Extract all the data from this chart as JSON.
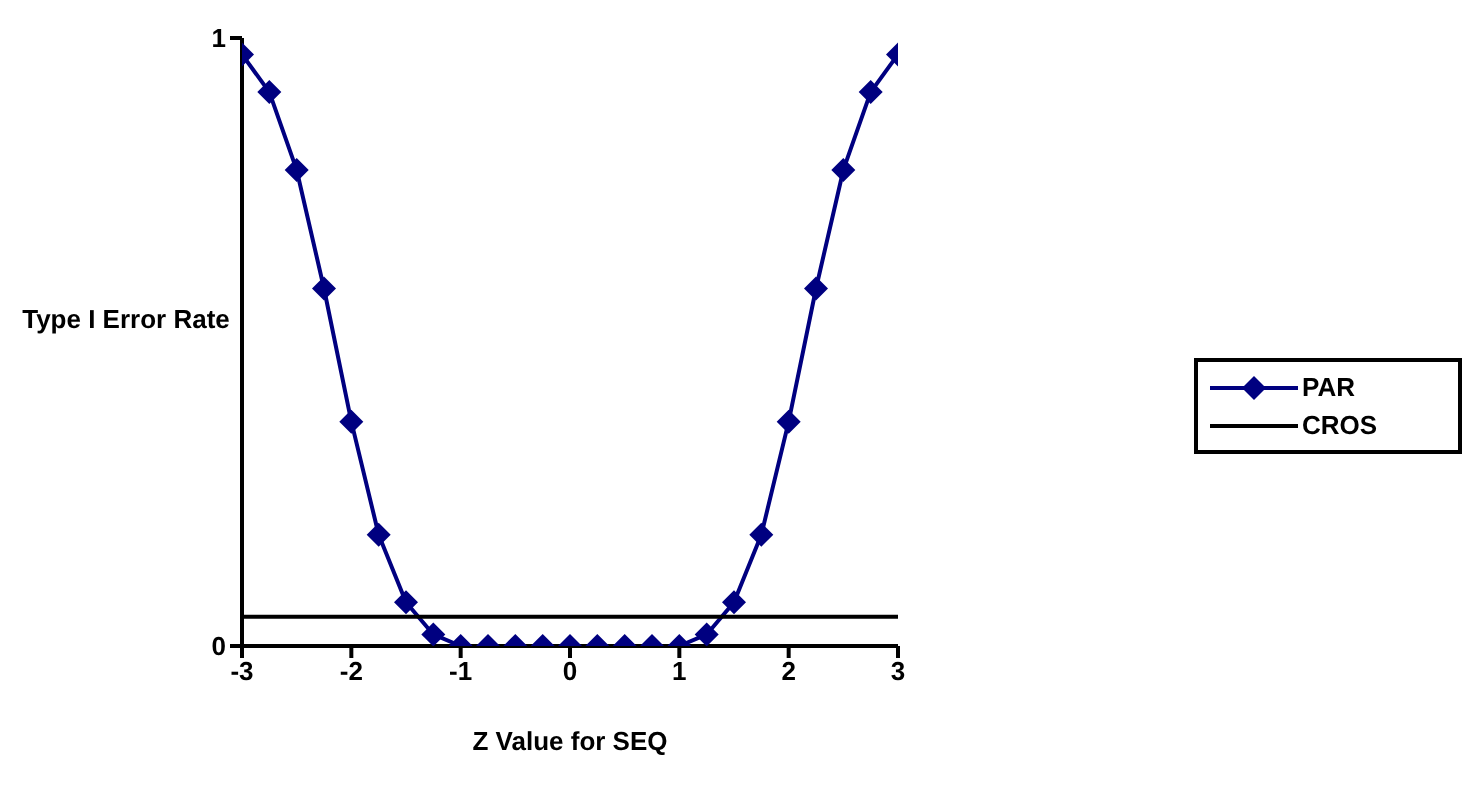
{
  "chart_data": {
    "type": "line",
    "xlabel": "Z Value for SEQ",
    "ylabel": "Type I Error Rate",
    "x": [
      -3,
      -2.75,
      -2.5,
      -2.25,
      -2,
      -1.75,
      -1.5,
      -1.25,
      -1,
      -0.75,
      -0.5,
      -0.25,
      0,
      0.25,
      0.5,
      0.75,
      1,
      1.25,
      1.5,
      1.75,
      2,
      2.25,
      2.5,
      2.75,
      3
    ],
    "series": [
      {
        "name": "PAR",
        "color": "#000080",
        "marker": "diamond",
        "values": [
          0.973,
          0.911,
          0.783,
          0.588,
          0.369,
          0.183,
          0.072,
          0.019,
          0,
          0,
          0,
          0,
          0,
          0,
          0,
          0,
          0,
          0.019,
          0.072,
          0.183,
          0.369,
          0.588,
          0.783,
          0.911,
          0.973
        ]
      },
      {
        "name": "CROS",
        "color": "#000000",
        "marker": "none",
        "values": [
          0.048,
          0.048,
          0.048,
          0.048,
          0.048,
          0.048,
          0.048,
          0.048,
          0.048,
          0.048,
          0.048,
          0.048,
          0.048,
          0.048,
          0.048,
          0.048,
          0.048,
          0.048,
          0.048,
          0.048,
          0.048,
          0.048,
          0.048,
          0.048,
          0.048
        ]
      }
    ],
    "xlim": [
      -3,
      3
    ],
    "xticks": [
      -3,
      -2,
      -1,
      0,
      1,
      2,
      3
    ],
    "ylim": [
      0,
      1
    ],
    "yticks": [
      0,
      1
    ],
    "grid": false,
    "legend": "right"
  }
}
